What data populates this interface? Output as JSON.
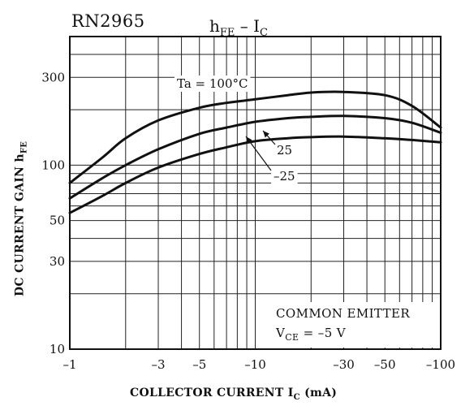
{
  "part_label": "RN2965",
  "chart_data": {
    "type": "line",
    "title": {
      "main": "h",
      "main_sub": "FE",
      "dash": "–",
      "var": "I",
      "var_sub": "C"
    },
    "xlabel": {
      "text": "COLLECTOR CURRENT",
      "var": "I",
      "var_sub": "C",
      "unit": "(mA)"
    },
    "ylabel": {
      "text": "DC CURRENT GAIN",
      "var": "h",
      "var_sub": "FE"
    },
    "x_scale": "log",
    "y_scale": "log",
    "xlim": [
      -1,
      -100
    ],
    "ylim": [
      10,
      500
    ],
    "grid": true,
    "x_ticks": [
      {
        "value": -1,
        "label": "–1"
      },
      {
        "value": -3,
        "label": "–3"
      },
      {
        "value": -5,
        "label": "–5"
      },
      {
        "value": -10,
        "label": "–10"
      },
      {
        "value": -30,
        "label": "–30"
      },
      {
        "value": -50,
        "label": "–50"
      },
      {
        "value": -100,
        "label": "–100"
      }
    ],
    "y_ticks": [
      {
        "value": 10,
        "label": "10"
      },
      {
        "value": 30,
        "label": "30"
      },
      {
        "value": 50,
        "label": "50"
      },
      {
        "value": 100,
        "label": "100"
      },
      {
        "value": 300,
        "label": "300"
      }
    ],
    "series": [
      {
        "name": "Ta = 100°C",
        "x": [
          -1,
          -1.5,
          -2,
          -3,
          -5,
          -7,
          -10,
          -15,
          -20,
          -30,
          -50,
          -70,
          -100
        ],
        "y": [
          80,
          110,
          140,
          175,
          205,
          218,
          228,
          240,
          248,
          250,
          240,
          210,
          160
        ]
      },
      {
        "name": "25",
        "x": [
          -1,
          -1.5,
          -2,
          -3,
          -5,
          -7,
          -10,
          -15,
          -20,
          -30,
          -50,
          -70,
          -100
        ],
        "y": [
          66,
          85,
          100,
          122,
          148,
          160,
          172,
          180,
          183,
          185,
          180,
          170,
          150
        ]
      },
      {
        "name": "–25",
        "x": [
          -1,
          -1.5,
          -2,
          -3,
          -5,
          -7,
          -10,
          -15,
          -20,
          -30,
          -50,
          -70,
          -100
        ],
        "y": [
          55,
          68,
          80,
          97,
          115,
          125,
          135,
          140,
          142,
          143,
          140,
          137,
          133
        ]
      }
    ],
    "annotation": {
      "line1": "COMMON EMITTER",
      "line2_var": "V",
      "line2_sub": "CE",
      "line2_rest": " = –5 V"
    }
  }
}
